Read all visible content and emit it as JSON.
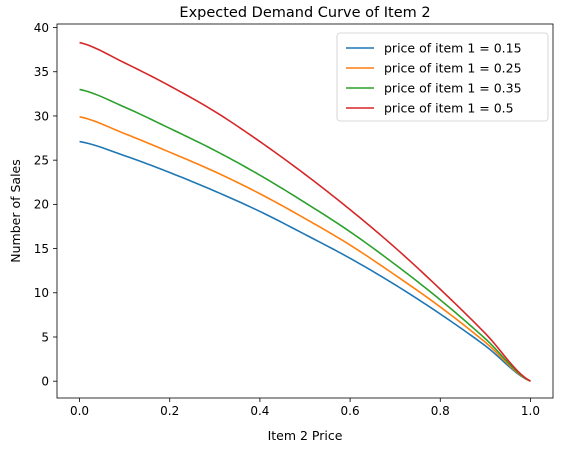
{
  "chart_data": {
    "type": "line",
    "title": "Expected Demand Curve of Item 2",
    "xlabel": "Item 2 Price",
    "ylabel": "Number of Sales",
    "xlim": [
      -0.05,
      1.05
    ],
    "ylim": [
      -1.9,
      40.4
    ],
    "xticks": [
      0.0,
      0.2,
      0.4,
      0.6,
      0.8,
      1.0
    ],
    "xtick_labels": [
      "0.0",
      "0.2",
      "0.4",
      "0.6",
      "0.8",
      "1.0"
    ],
    "yticks": [
      0,
      5,
      10,
      15,
      20,
      25,
      30,
      35,
      40
    ],
    "ytick_labels": [
      "0",
      "5",
      "10",
      "15",
      "20",
      "25",
      "30",
      "35",
      "40"
    ],
    "grid": false,
    "legend_position": "top-right",
    "x": [
      0.0,
      0.1,
      0.2,
      0.3,
      0.4,
      0.5,
      0.6,
      0.7,
      0.8,
      0.9,
      1.0
    ],
    "series": [
      {
        "name": "price of item 1 = 0.15",
        "color": "#1f77b4",
        "values": [
          27.1,
          25.5,
          23.6,
          21.5,
          19.2,
          16.6,
          13.9,
          10.9,
          7.6,
          4.0,
          0.0
        ]
      },
      {
        "name": "price of item 1 = 0.25",
        "color": "#ff7f0e",
        "values": [
          29.9,
          28.0,
          25.9,
          23.7,
          21.2,
          18.4,
          15.4,
          12.0,
          8.4,
          4.4,
          0.0
        ]
      },
      {
        "name": "price of item 1 = 0.35",
        "color": "#2ca02c",
        "values": [
          33.0,
          31.0,
          28.6,
          26.1,
          23.3,
          20.2,
          16.9,
          13.2,
          9.2,
          4.8,
          0.0
        ]
      },
      {
        "name": "price of item 1 = 0.5",
        "color": "#d62728",
        "values": [
          38.3,
          36.0,
          33.4,
          30.5,
          27.1,
          23.4,
          19.4,
          15.1,
          10.4,
          5.4,
          0.0
        ]
      }
    ]
  }
}
